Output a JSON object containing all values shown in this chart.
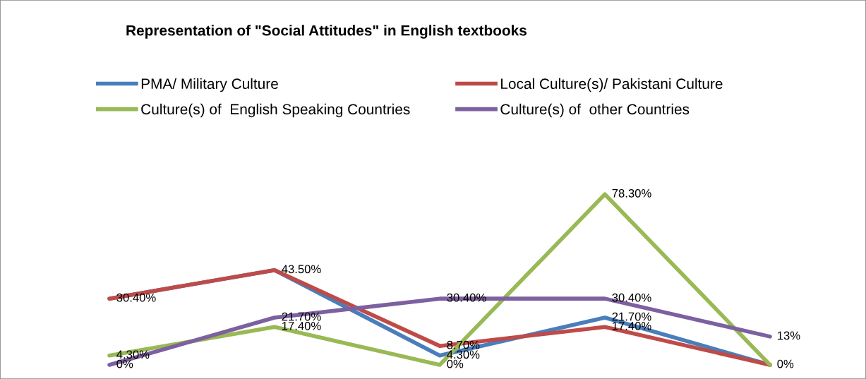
{
  "chart_data": {
    "type": "line",
    "title": "Representation of \"Social Attitudes\" in English textbooks",
    "categories": [
      null,
      null,
      null,
      null,
      null
    ],
    "series": [
      {
        "name": "PMA/ Military Culture",
        "color": "#4a7ebb",
        "values": [
          30.4,
          43.5,
          4.3,
          21.7,
          0
        ],
        "value_labels": [
          null,
          null,
          "4.30%",
          "21.70%",
          null
        ]
      },
      {
        "name": "Local Culture(s)/ Pakistani Culture",
        "color": "#be4b48",
        "values": [
          30.4,
          43.5,
          8.7,
          17.4,
          0
        ],
        "value_labels": [
          "30.40%",
          "43.50%",
          "8.70%",
          "17.40%",
          "0%"
        ]
      },
      {
        "name": "Culture(s) of  English Speaking Countries",
        "color": "#98b954",
        "values": [
          4.3,
          17.4,
          0,
          78.3,
          0
        ],
        "value_labels": [
          "4.30%",
          "17.40%",
          "0%",
          "78.30%",
          null
        ]
      },
      {
        "name": "Culture(s) of  other Countries",
        "color": "#7d60a0",
        "values": [
          0,
          21.7,
          30.4,
          30.4,
          13
        ],
        "value_labels": [
          "0%",
          "21.70%",
          "30.40%",
          "30.40%",
          "13%"
        ]
      }
    ],
    "legend": "top",
    "marker": "none",
    "line_style": "solid"
  }
}
